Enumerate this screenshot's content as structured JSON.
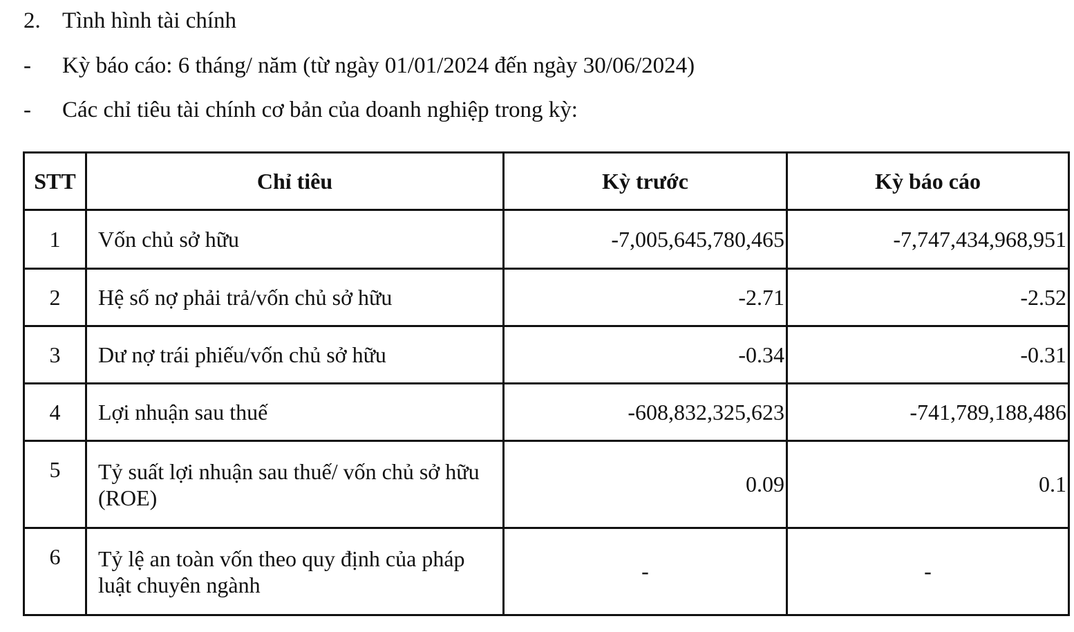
{
  "section": {
    "number": "2.",
    "title": "Tình hình tài chính"
  },
  "bullets": [
    {
      "marker": "-",
      "text": "Kỳ báo cáo: 6 tháng/ năm (từ ngày 01/01/2024 đến ngày 30/06/2024)"
    },
    {
      "marker": "-",
      "text": "Các chỉ tiêu tài chính cơ bản của doanh nghiệp trong kỳ:"
    }
  ],
  "table": {
    "headers": [
      "STT",
      "Chỉ tiêu",
      "Kỳ trước",
      "Kỳ báo cáo"
    ],
    "rows": [
      [
        "1",
        "Vốn chủ sở hữu",
        "-7,005,645,780,465",
        "-7,747,434,968,951"
      ],
      [
        "2",
        "Hệ số nợ phải trả/vốn chủ sở hữu",
        "-2.71",
        "-2.52"
      ],
      [
        "3",
        "Dư nợ trái phiếu/vốn chủ sở hữu",
        "-0.34",
        "-0.31"
      ],
      [
        "4",
        "Lợi nhuận sau thuế",
        "-608,832,325,623",
        "-741,789,188,486"
      ],
      [
        "5",
        "Tỷ suất lợi nhuận sau thuế/ vốn chủ sở hữu (ROE)",
        "0.09",
        "0.1"
      ],
      [
        "6",
        "Tỷ lệ an toàn vốn theo quy định của pháp luật chuyên ngành",
        "-",
        "-"
      ]
    ]
  }
}
